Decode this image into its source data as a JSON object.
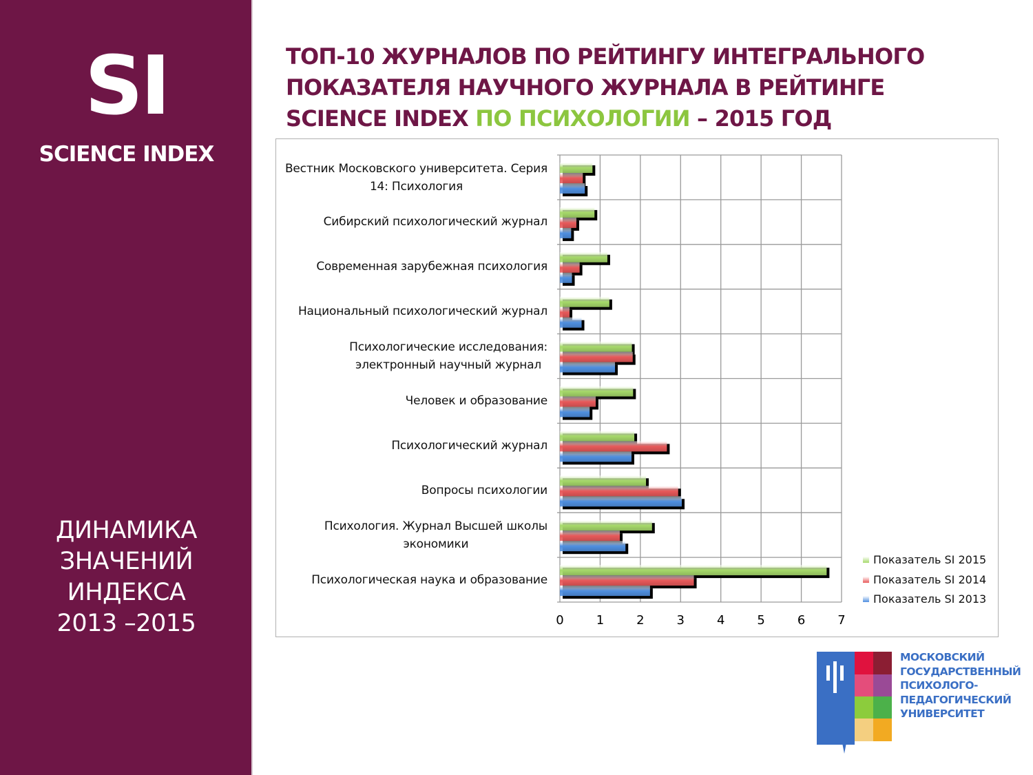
{
  "sidebar": {
    "logo": "SI",
    "name": "SCIENCE INDEX",
    "subtitle_lines": [
      "ДИНАМИКА",
      "ЗНАЧЕНИЙ",
      "ИНДЕКСА",
      "2013 –2015"
    ]
  },
  "title": {
    "part1": "ТОП-10 ЖУРНАЛОВ ПО РЕЙТИНГУ ИНТЕГРАЛЬНОГО ПОКАЗАТЕЛЯ НАУЧНОГО ЖУРНАЛА В РЕЙТИНГЕ SCIENCE INDEX ",
    "highlight": "ПО ПСИХОЛОГИИ",
    "part2": " – 2015 ГОД",
    "highlight_color": "#8cc63f",
    "color": "#6e1646"
  },
  "university": {
    "lines": [
      "МОСКОВСКИЙ",
      "ГОСУДАРСТВЕННЫЙ",
      "ПСИХОЛОГО-",
      "ПЕДАГОГИЧЕСКИЙ",
      "УНИВЕРСИТЕТ"
    ]
  },
  "chart_data": {
    "type": "bar",
    "orientation": "horizontal",
    "categories": [
      "Вестник Московского университета. Серия 14: Психология",
      "Сибирский психологический журнал",
      "Современная зарубежная психология",
      "Национальный психологический журнал",
      "Психологические исследования: электронный научный журнал",
      "Человек и образование",
      "Психологический журнал",
      "Вопросы психологии",
      "Психология. Журнал Высшей школы экономики",
      "Психологическая наука и образование"
    ],
    "category_lines": [
      [
        "Вестник Московского университета. Серия",
        "14: Психология"
      ],
      [
        "Сибирский психологический журнал"
      ],
      [
        "Современная зарубежная психология"
      ],
      [
        "Национальный психологический журнал"
      ],
      [
        "Психологические исследования:",
        "электронный научный журнал"
      ],
      [
        "Человек и образование"
      ],
      [
        "Психологический журнал"
      ],
      [
        "Вопросы психологии"
      ],
      [
        "Психология. Журнал Высшей школы",
        "экономики"
      ],
      [
        "Психологическая наука и образование"
      ]
    ],
    "series": [
      {
        "name": "Показатель SI 2015",
        "color": "#a6d96a",
        "values": [
          0.81,
          0.86,
          1.18,
          1.23,
          1.79,
          1.82,
          1.85,
          2.14,
          2.29,
          6.63
        ]
      },
      {
        "name": "Показатель SI 2014",
        "color": "#e8595a",
        "values": [
          0.57,
          0.41,
          0.49,
          0.24,
          1.81,
          0.89,
          2.66,
          2.94,
          1.49,
          3.33
        ]
      },
      {
        "name": "Показатель SI 2013",
        "color": "#4f8fe0",
        "values": [
          0.62,
          0.28,
          0.3,
          0.54,
          1.37,
          0.74,
          1.78,
          3.03,
          1.63,
          2.24
        ]
      }
    ],
    "xlim": [
      0,
      7
    ],
    "xticks": [
      "0",
      "1",
      "2",
      "3",
      "4",
      "5",
      "6",
      "7"
    ],
    "grid": true,
    "legend": "right"
  }
}
